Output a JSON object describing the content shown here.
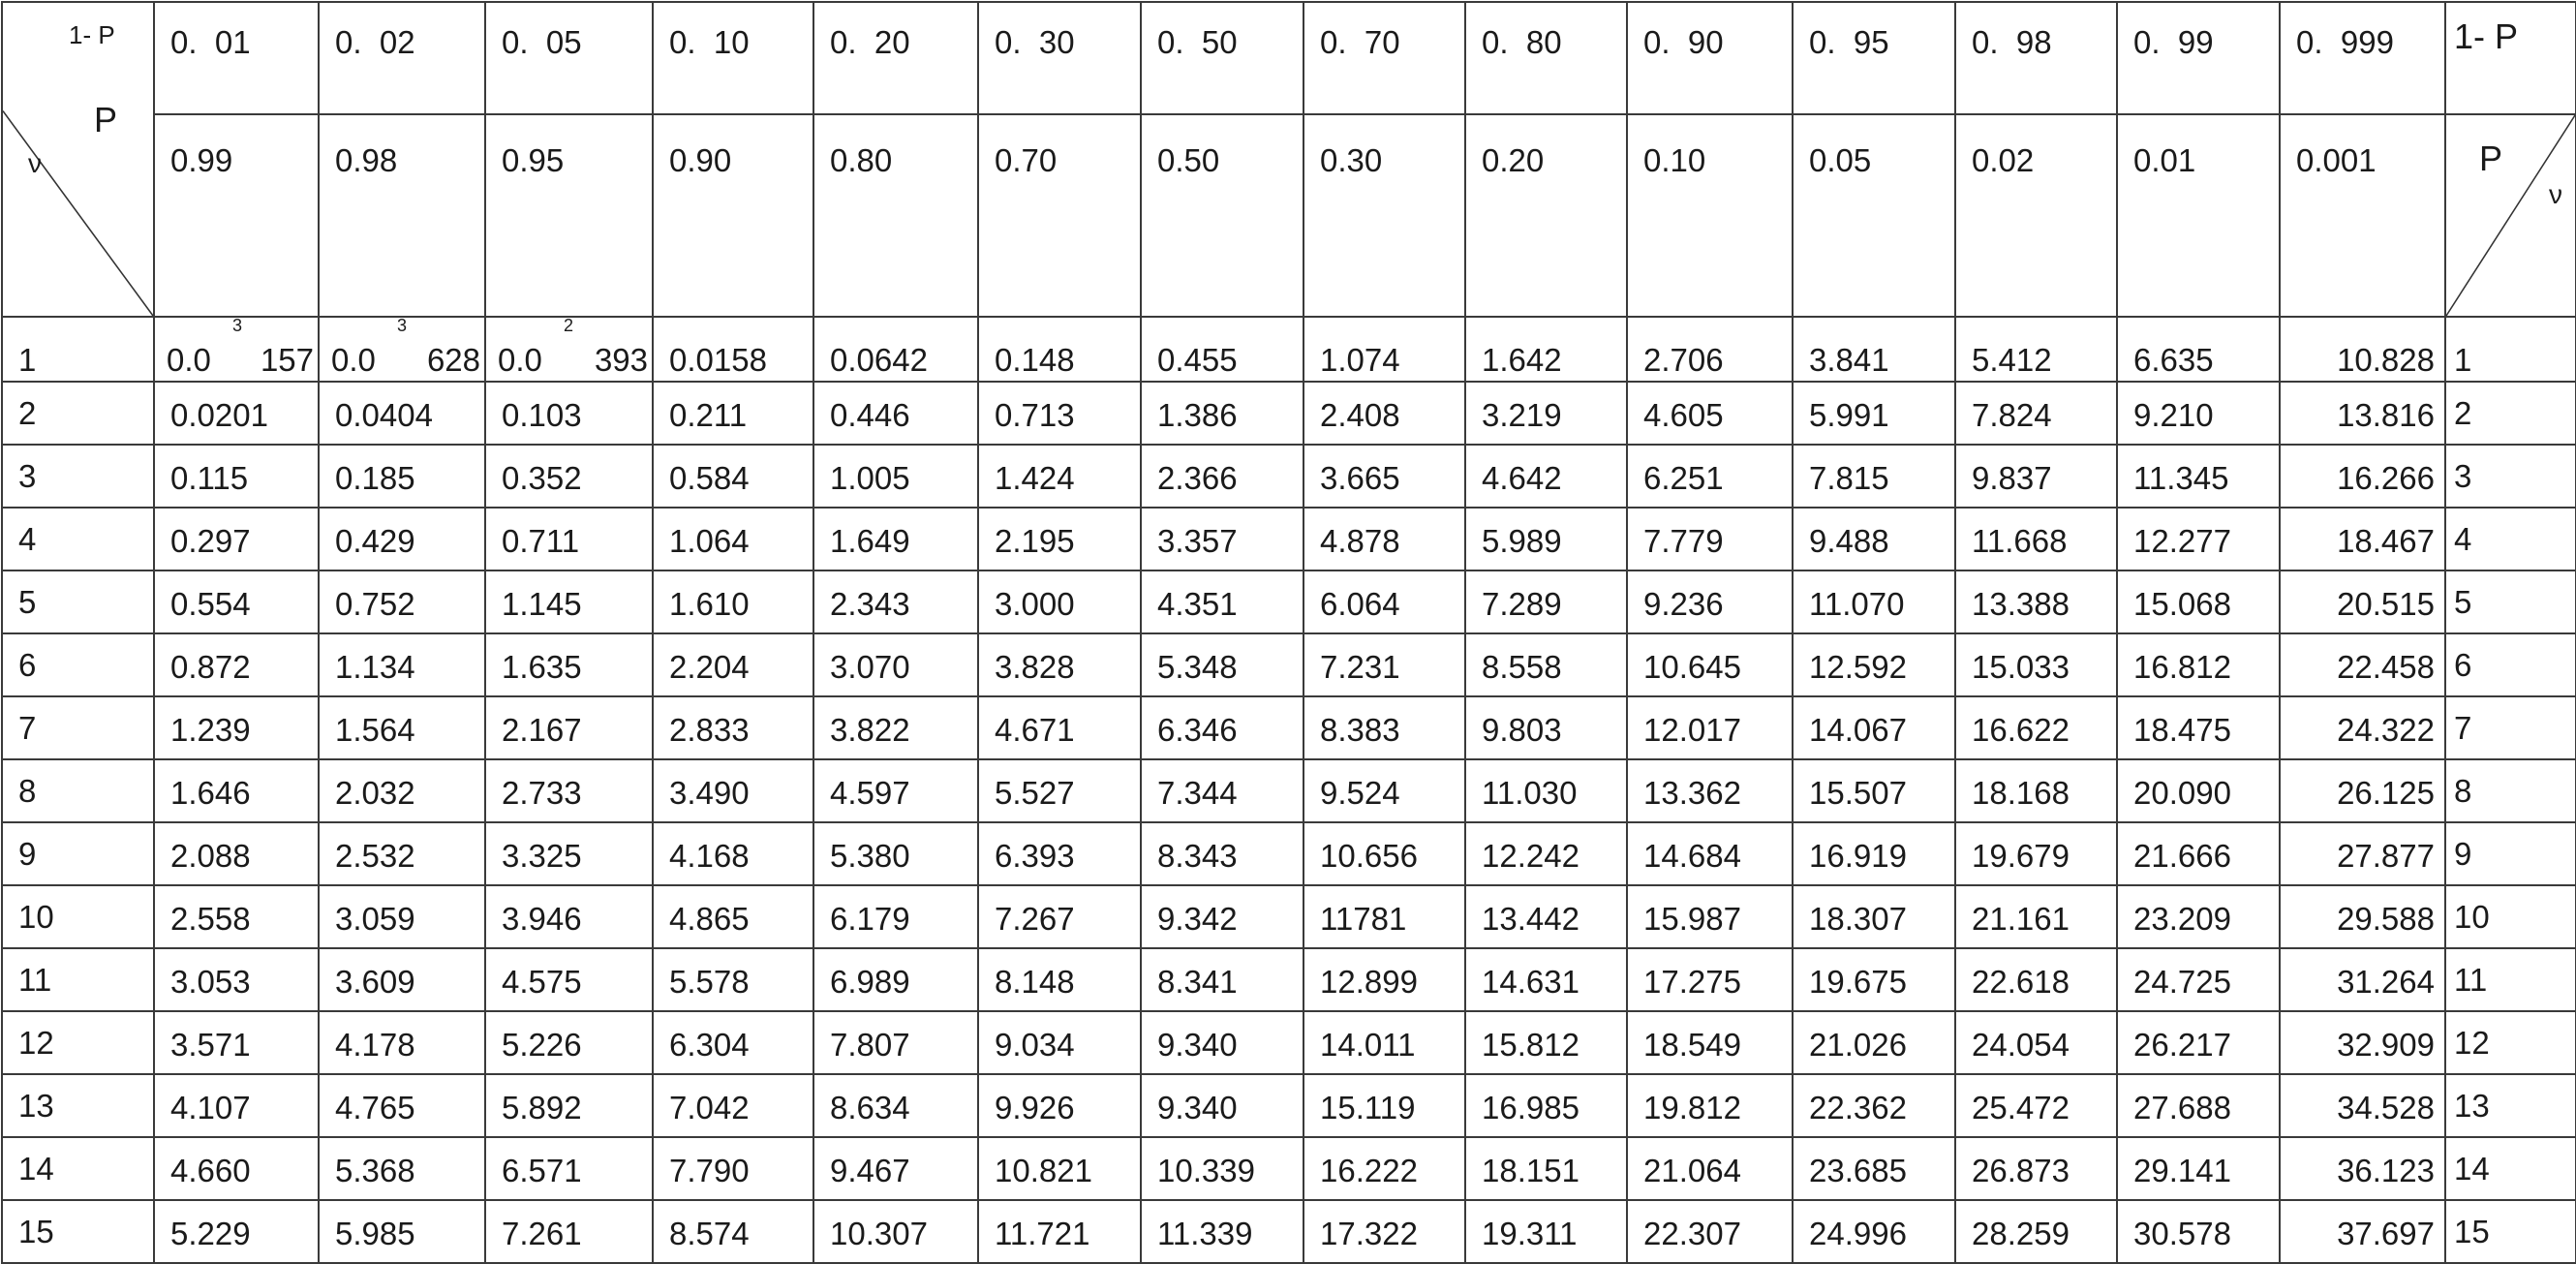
{
  "table": {
    "corner_left": {
      "top": "1- P",
      "mid": "P",
      "bottom": "ν"
    },
    "corner_right": {
      "top": "1- P",
      "mid": "P",
      "bottom": "ν"
    },
    "one_minus_p": [
      "0.  01",
      "0.  02",
      "0.  05",
      "0.  10",
      "0.  20",
      "0.  30",
      "0.  50",
      "0.  70",
      "0.  80",
      "0.  90",
      "0.  95",
      "0.  98",
      "0.  99",
      "0.  999"
    ],
    "p": [
      "0.99",
      "0.98",
      "0.95",
      "0.90",
      "0.80",
      "0.70",
      "0.50",
      "0.30",
      "0.20",
      "0.10",
      "0.05",
      "0.02",
      "0.01",
      "0.001"
    ],
    "row1": {
      "nu": "1",
      "special": [
        {
          "base": "0.0",
          "exp": "3",
          "tail": "157"
        },
        {
          "base": "0.0",
          "exp": "3",
          "tail": "628"
        },
        {
          "base": "0.0",
          "exp": "2",
          "tail": "393"
        }
      ],
      "values": [
        "0.0158",
        "0.0642",
        "0.148",
        "0.455",
        "1.074",
        "1.642",
        "2.706",
        "3.841",
        "5.412",
        "6.635",
        "10.828"
      ]
    },
    "rows": [
      {
        "nu": "2",
        "values": [
          "0.0201",
          "0.0404",
          "0.103",
          "0.211",
          "0.446",
          "0.713",
          "1.386",
          "2.408",
          "3.219",
          "4.605",
          "5.991",
          "7.824",
          "9.210",
          "13.816"
        ]
      },
      {
        "nu": "3",
        "values": [
          "0.115",
          "0.185",
          "0.352",
          "0.584",
          "1.005",
          "1.424",
          "2.366",
          "3.665",
          "4.642",
          "6.251",
          "7.815",
          "9.837",
          "11.345",
          "16.266"
        ]
      },
      {
        "nu": "4",
        "values": [
          "0.297",
          "0.429",
          "0.711",
          "1.064",
          "1.649",
          "2.195",
          "3.357",
          "4.878",
          "5.989",
          "7.779",
          "9.488",
          "11.668",
          "12.277",
          "18.467"
        ]
      },
      {
        "nu": "5",
        "values": [
          "0.554",
          "0.752",
          "1.145",
          "1.610",
          "2.343",
          "3.000",
          "4.351",
          "6.064",
          "7.289",
          "9.236",
          "11.070",
          "13.388",
          "15.068",
          "20.515"
        ]
      },
      {
        "nu": "6",
        "values": [
          "0.872",
          "1.134",
          "1.635",
          "2.204",
          "3.070",
          "3.828",
          "5.348",
          "7.231",
          "8.558",
          "10.645",
          "12.592",
          "15.033",
          "16.812",
          "22.458"
        ]
      },
      {
        "nu": "7",
        "values": [
          "1.239",
          "1.564",
          "2.167",
          "2.833",
          "3.822",
          "4.671",
          "6.346",
          "8.383",
          "9.803",
          "12.017",
          "14.067",
          "16.622",
          "18.475",
          "24.322"
        ]
      },
      {
        "nu": "8",
        "values": [
          "1.646",
          "2.032",
          "2.733",
          "3.490",
          "4.597",
          "5.527",
          "7.344",
          "9.524",
          "11.030",
          "13.362",
          "15.507",
          "18.168",
          "20.090",
          "26.125"
        ]
      },
      {
        "nu": "9",
        "values": [
          "2.088",
          "2.532",
          "3.325",
          "4.168",
          "5.380",
          "6.393",
          "8.343",
          "10.656",
          "12.242",
          "14.684",
          "16.919",
          "19.679",
          "21.666",
          "27.877"
        ]
      },
      {
        "nu": "10",
        "values": [
          "2.558",
          "3.059",
          "3.946",
          "4.865",
          "6.179",
          "7.267",
          "9.342",
          "11781",
          "13.442",
          "15.987",
          "18.307",
          "21.161",
          "23.209",
          "29.588"
        ]
      },
      {
        "nu": "11",
        "values": [
          "3.053",
          "3.609",
          "4.575",
          "5.578",
          "6.989",
          "8.148",
          "8.341",
          "12.899",
          "14.631",
          "17.275",
          "19.675",
          "22.618",
          "24.725",
          "31.264"
        ]
      },
      {
        "nu": "12",
        "values": [
          "3.571",
          "4.178",
          "5.226",
          "6.304",
          "7.807",
          "9.034",
          "9.340",
          "14.011",
          "15.812",
          "18.549",
          "21.026",
          "24.054",
          "26.217",
          "32.909"
        ]
      },
      {
        "nu": "13",
        "values": [
          "4.107",
          "4.765",
          "5.892",
          "7.042",
          "8.634",
          "9.926",
          "9.340",
          "15.119",
          "16.985",
          "19.812",
          "22.362",
          "25.472",
          "27.688",
          "34.528"
        ]
      },
      {
        "nu": "14",
        "values": [
          "4.660",
          "5.368",
          "6.571",
          "7.790",
          "9.467",
          "10.821",
          "10.339",
          "16.222",
          "18.151",
          "21.064",
          "23.685",
          "26.873",
          "29.141",
          "36.123"
        ]
      },
      {
        "nu": "15",
        "values": [
          "5.229",
          "5.985",
          "7.261",
          "8.574",
          "10.307",
          "11.721",
          "11.339",
          "17.322",
          "19.311",
          "22.307",
          "24.996",
          "28.259",
          "30.578",
          "37.697"
        ]
      }
    ]
  }
}
